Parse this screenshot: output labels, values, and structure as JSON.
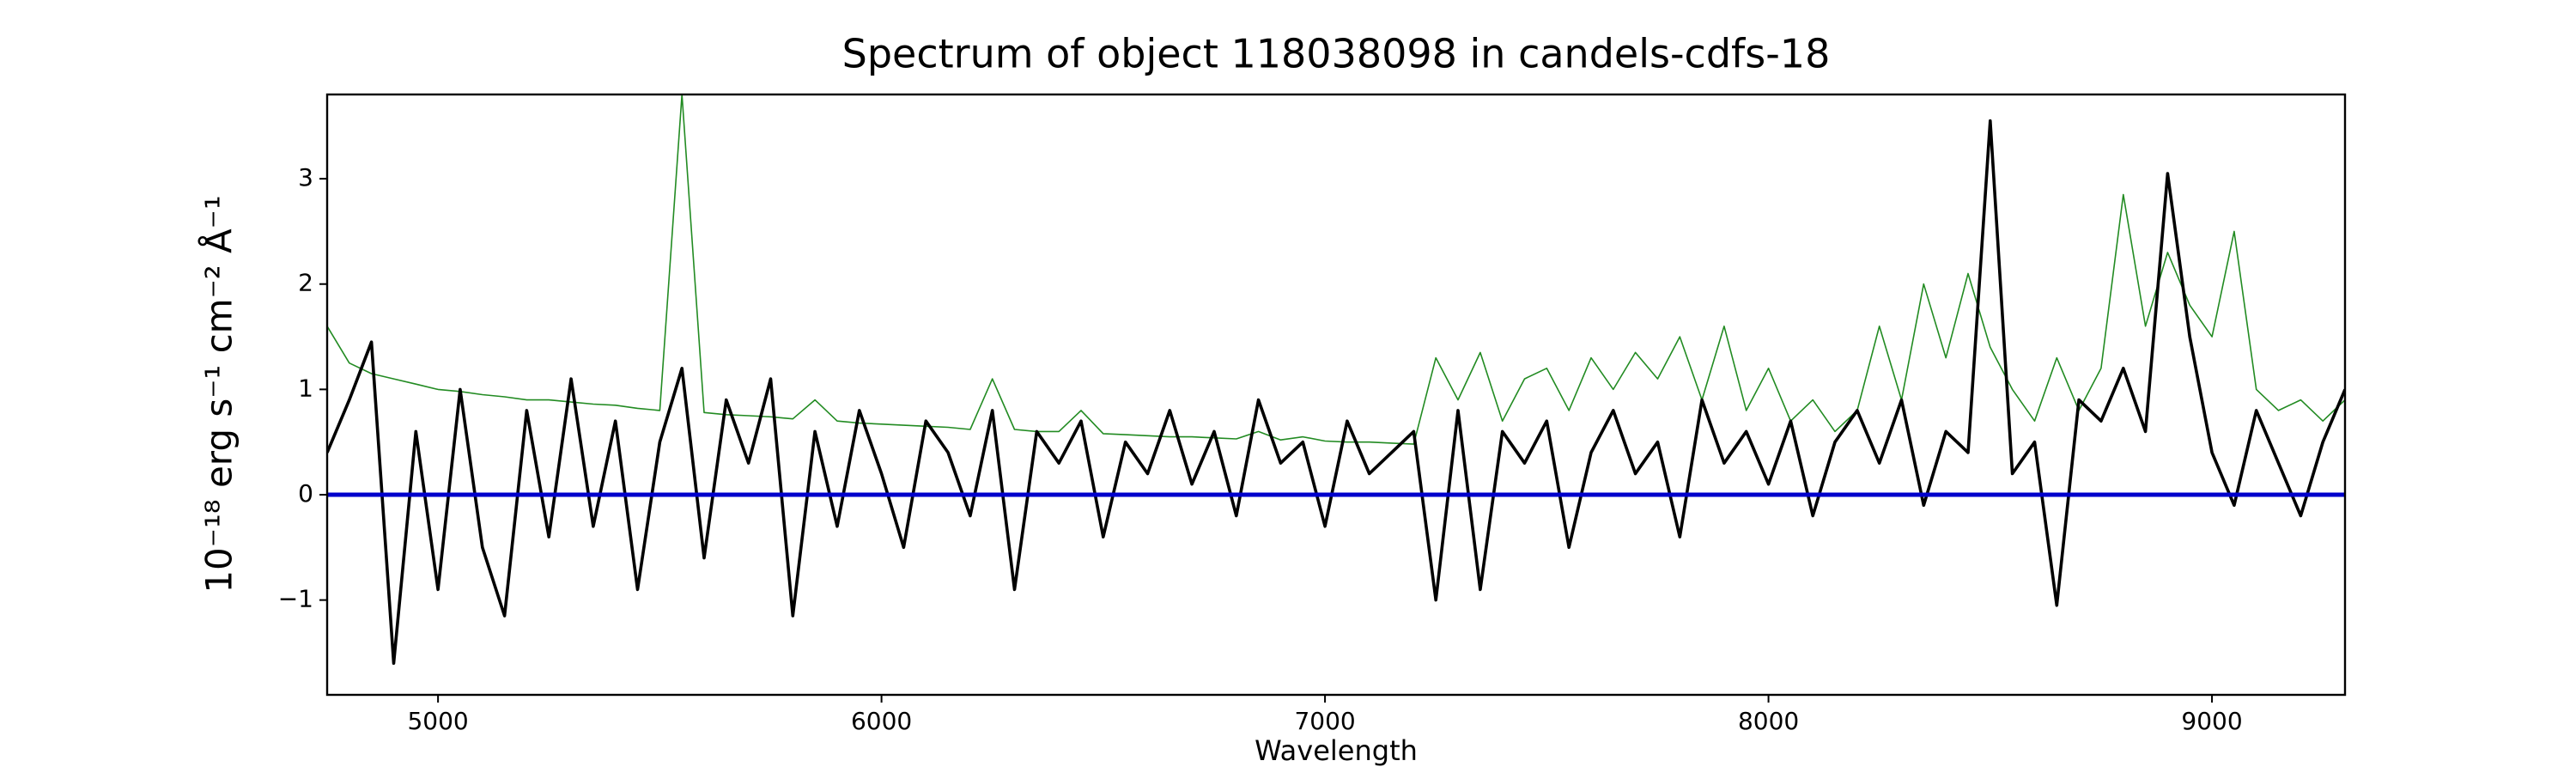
{
  "chart_data": {
    "type": "line",
    "title": "Spectrum of object 118038098 in candels-cdfs-18",
    "x_label": "Wavelength",
    "y_label": "10⁻¹⁸ erg s⁻¹ cm⁻² Å⁻¹",
    "xlim": [
      4750,
      9300
    ],
    "ylim": [
      -1.9,
      3.8
    ],
    "xticks": [
      5000,
      6000,
      7000,
      8000,
      9000
    ],
    "yticks": [
      -1,
      0,
      1,
      2,
      3
    ],
    "reference_line": {
      "value": 0,
      "color": "#0000cc"
    },
    "x": [
      4750,
      4800,
      4850,
      4900,
      4950,
      5000,
      5050,
      5100,
      5150,
      5200,
      5250,
      5300,
      5350,
      5400,
      5450,
      5500,
      5550,
      5600,
      5650,
      5700,
      5750,
      5800,
      5850,
      5900,
      5950,
      6000,
      6050,
      6100,
      6150,
      6200,
      6250,
      6300,
      6350,
      6400,
      6450,
      6500,
      6550,
      6600,
      6650,
      6700,
      6750,
      6800,
      6850,
      6900,
      6950,
      7000,
      7050,
      7100,
      7150,
      7200,
      7250,
      7300,
      7350,
      7400,
      7450,
      7500,
      7550,
      7600,
      7650,
      7700,
      7750,
      7800,
      7850,
      7900,
      7950,
      8000,
      8050,
      8100,
      8150,
      8200,
      8250,
      8300,
      8350,
      8400,
      8450,
      8500,
      8550,
      8600,
      8650,
      8700,
      8750,
      8800,
      8850,
      8900,
      8950,
      9000,
      9050,
      9100,
      9150,
      9200,
      9250,
      9300
    ],
    "series": [
      {
        "color": "#228b22",
        "values": [
          1.6,
          1.25,
          1.15,
          1.1,
          1.05,
          1.0,
          0.98,
          0.95,
          0.93,
          0.9,
          0.9,
          0.88,
          0.86,
          0.85,
          0.82,
          0.8,
          3.8,
          0.78,
          0.76,
          0.75,
          0.74,
          0.72,
          0.9,
          0.7,
          0.68,
          0.67,
          0.66,
          0.65,
          0.64,
          0.62,
          1.1,
          0.62,
          0.6,
          0.6,
          0.8,
          0.58,
          0.57,
          0.56,
          0.55,
          0.55,
          0.54,
          0.53,
          0.6,
          0.52,
          0.55,
          0.51,
          0.5,
          0.5,
          0.49,
          0.48,
          1.3,
          0.9,
          1.35,
          0.7,
          1.1,
          1.2,
          0.8,
          1.3,
          1.0,
          1.35,
          1.1,
          1.5,
          0.9,
          1.6,
          0.8,
          1.2,
          0.7,
          0.9,
          0.6,
          0.8,
          1.6,
          0.9,
          2.0,
          1.3,
          2.1,
          1.4,
          1.0,
          0.7,
          1.3,
          0.8,
          1.2,
          2.85,
          1.6,
          2.3,
          1.8,
          1.5,
          2.5,
          1.0,
          0.8,
          0.9,
          0.7,
          0.9
        ]
      },
      {
        "color": "#000000",
        "values": [
          0.4,
          0.9,
          1.45,
          -1.6,
          0.6,
          -0.9,
          1.0,
          -0.5,
          -1.15,
          0.8,
          -0.4,
          1.1,
          -0.3,
          0.7,
          -0.9,
          0.5,
          1.2,
          -0.6,
          0.9,
          0.3,
          1.1,
          -1.15,
          0.6,
          -0.3,
          0.8,
          0.2,
          -0.5,
          0.7,
          0.4,
          -0.2,
          0.8,
          -0.9,
          0.6,
          0.3,
          0.7,
          -0.4,
          0.5,
          0.2,
          0.8,
          0.1,
          0.6,
          -0.2,
          0.9,
          0.3,
          0.5,
          -0.3,
          0.7,
          0.2,
          0.4,
          0.6,
          -1.0,
          0.8,
          -0.9,
          0.6,
          0.3,
          0.7,
          -0.5,
          0.4,
          0.8,
          0.2,
          0.5,
          -0.4,
          0.9,
          0.3,
          0.6,
          0.1,
          0.7,
          -0.2,
          0.5,
          0.8,
          0.3,
          0.9,
          -0.1,
          0.6,
          0.4,
          3.55,
          0.2,
          0.5,
          -1.05,
          0.9,
          0.7,
          1.2,
          0.6,
          3.05,
          1.5,
          0.4,
          -0.1,
          0.8,
          0.3,
          -0.2,
          0.5,
          1.0
        ]
      }
    ]
  }
}
